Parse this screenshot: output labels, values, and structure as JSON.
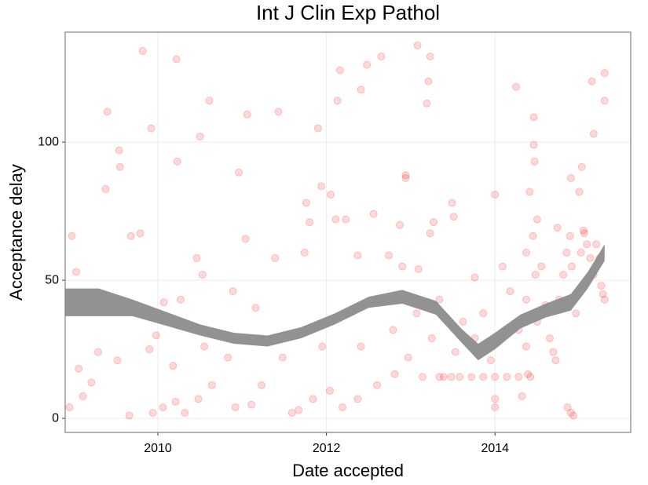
{
  "chart_data": {
    "type": "scatter",
    "title": "Int J Clin Exp Pathol",
    "x_label": "Date accepted",
    "y_label": "Acceptance delay",
    "xlim": [
      2008.9,
      2015.61
    ],
    "xticks": [
      2010,
      2012,
      2014
    ],
    "ylim": [
      -5.1,
      139.8
    ],
    "yticks": [
      0,
      50,
      100
    ],
    "grid": true,
    "color": "#ff0000",
    "alpha": 0.15,
    "x": [
      2009.82,
      2010.22,
      2010.61,
      2011.43,
      2009.4,
      2009.92,
      2009.54,
      2009.55,
      2010.96,
      2010.23,
      2010.5,
      2011.06,
      2011.9,
      2012.16,
      2012.48,
      2012.65,
      2013.08,
      2013.23,
      2013.21,
      2013.19,
      2012.41,
      2012.13,
      2011.94,
      2012.94,
      2008.98,
      2009.03,
      2009.38,
      2009.68,
      2009.79,
      2009.98,
      2010.07,
      2010.27,
      2010.46,
      2010.53,
      2010.89,
      2011.04,
      2011.16,
      2011.39,
      2011.74,
      2011.8,
      2011.76,
      2012.05,
      2012.11,
      2012.23,
      2012.37,
      2012.56,
      2012.74,
      2012.87,
      2012.9,
      2012.94,
      2013.09,
      2013.23,
      2013.27,
      2013.49,
      2013.51,
      2013.76,
      2014.0,
      2014.25,
      2014.46,
      2014.46,
      2014.47,
      2014.41,
      2014.5,
      2014.9,
      2015.0,
      2015.03,
      2015.15,
      2015.17,
      2015.3,
      2015.3,
      2015.06,
      2008.95,
      2009.11,
      2009.21,
      2009.66,
      2009.94,
      2010.06,
      2010.21,
      2010.32,
      2010.48,
      2010.64,
      2010.92,
      2011.11,
      2011.23,
      2011.59,
      2011.67,
      2011.84,
      2012.04,
      2012.19,
      2012.37,
      2012.6,
      2012.81,
      2013.14,
      2013.34,
      2013.39,
      2013.48,
      2013.58,
      2013.72,
      2013.86,
      2014.0,
      2014.14,
      2014.28,
      2014.42,
      2014.0,
      2014.0,
      2014.32,
      2014.86,
      2014.9,
      2014.93,
      2009.06,
      2009.29,
      2009.52,
      2009.9,
      2010.18,
      2010.55,
      2010.83,
      2011.2,
      2011.48,
      2011.76,
      2011.95,
      2012.23,
      2012.41,
      2012.6,
      2012.79,
      2012.97,
      2013.07,
      2013.25,
      2013.34,
      2013.53,
      2013.62,
      2013.76,
      2013.86,
      2013.95,
      2014.09,
      2014.18,
      2014.28,
      2014.37,
      2014.37,
      2014.37,
      2014.45,
      2014.48,
      2014.5,
      2014.55,
      2014.6,
      2014.65,
      2014.69,
      2014.72,
      2014.76,
      2014.81,
      2014.85,
      2014.89,
      2014.91,
      2014.94,
      2014.96,
      2015.02,
      2015.05,
      2015.09,
      2015.13,
      2015.17,
      2015.2,
      2015.24,
      2015.26,
      2015.28,
      2015.3,
      2014.39,
      2014.74
    ],
    "values": [
      133,
      130,
      115,
      111,
      111,
      105,
      97,
      91,
      89,
      93,
      102,
      110,
      105,
      126,
      128,
      131,
      135,
      131,
      122,
      114,
      119,
      115,
      84,
      88,
      66,
      53,
      83,
      66,
      67,
      30,
      42,
      43,
      58,
      52,
      46,
      65,
      40,
      58,
      60,
      71,
      78,
      81,
      72,
      72,
      59,
      74,
      59,
      70,
      55,
      87,
      54,
      67,
      71,
      78,
      73,
      51,
      81,
      120,
      109,
      99,
      93,
      82,
      72,
      87,
      82,
      91,
      122,
      103,
      125,
      115,
      67,
      4,
      8,
      13,
      1,
      2,
      4,
      6,
      2,
      7,
      12,
      4,
      5,
      12,
      2,
      3,
      7,
      10,
      4,
      7,
      12,
      16,
      15,
      15,
      15,
      15,
      15,
      15,
      15,
      15,
      15,
      15,
      15,
      4,
      7,
      8,
      4,
      2,
      1,
      18,
      24,
      21,
      25,
      19,
      26,
      22,
      29,
      22,
      32,
      26,
      38,
      26,
      43,
      32,
      22,
      38,
      29,
      43,
      24,
      35,
      29,
      38,
      21,
      55,
      46,
      32,
      60,
      43,
      26,
      66,
      52,
      35,
      55,
      41,
      29,
      24,
      21,
      43,
      52,
      60,
      66,
      55,
      43,
      38,
      60,
      68,
      63,
      58,
      52,
      63,
      58,
      48,
      45,
      43,
      16,
      69
    ],
    "smooth": {
      "color": "#8c8c8c",
      "x": [
        2008.9,
        2009.3,
        2009.7,
        2010.1,
        2010.5,
        2010.9,
        2011.3,
        2011.7,
        2012.1,
        2012.5,
        2012.9,
        2013.3,
        2013.6,
        2013.8,
        2014.0,
        2014.3,
        2014.6,
        2014.9,
        2015.1,
        2015.3
      ],
      "lower": [
        37,
        37,
        37,
        33.5,
        30,
        27,
        26,
        29,
        34,
        40,
        41.5,
        37.5,
        27.5,
        21,
        25,
        32.5,
        36.5,
        39,
        47,
        57
      ],
      "upper": [
        47,
        47,
        43,
        38.5,
        34,
        31,
        30,
        33,
        38,
        44,
        46.5,
        42.5,
        32.5,
        27,
        31,
        37.5,
        41.5,
        45,
        53,
        63
      ]
    }
  }
}
